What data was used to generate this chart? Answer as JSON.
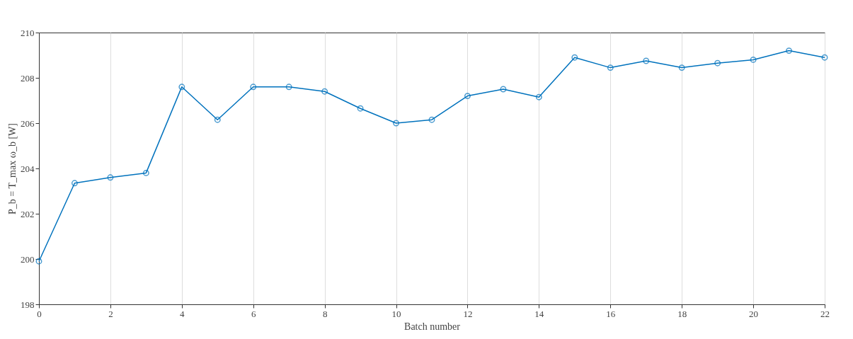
{
  "chart_data": {
    "type": "line",
    "xlabel": "Batch number",
    "ylabel": "P_b = T_max ω_b [W]",
    "x": [
      0,
      1,
      2,
      3,
      4,
      5,
      6,
      7,
      8,
      9,
      10,
      11,
      12,
      13,
      14,
      15,
      16,
      17,
      18,
      19,
      20,
      21,
      22
    ],
    "series": [
      {
        "color": "#0072bd",
        "values": [
          199.9,
          203.35,
          203.6,
          203.8,
          207.6,
          206.15,
          207.6,
          207.6,
          207.4,
          206.65,
          206.0,
          206.15,
          207.2,
          207.5,
          207.15,
          208.9,
          208.45,
          208.75,
          208.45,
          208.65,
          208.8,
          209.2,
          208.9
        ]
      }
    ],
    "xlim": [
      0,
      22
    ],
    "xticks": [
      0,
      2,
      4,
      6,
      8,
      10,
      12,
      14,
      16,
      18,
      20,
      22
    ],
    "ylim": [
      198,
      210
    ],
    "yticks": [
      198,
      200,
      202,
      204,
      206,
      208,
      210
    ],
    "grid": "x",
    "marker": "circle",
    "line_style": "solid"
  }
}
